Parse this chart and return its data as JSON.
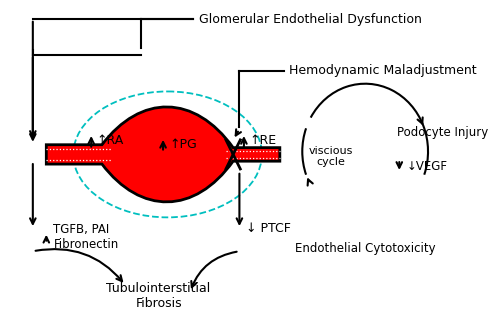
{
  "bg_color": "#ffffff",
  "glom_text": "Glomerular Endothelial Dysfunction",
  "hemo_text": "Hemodynamic Maladjustment",
  "ra_text": "↑RA",
  "re_text": "↑RE",
  "pg_text": "↑PG",
  "ptcf_text": "↓ PTCF",
  "tgfb_text": "TGFB, PAI\nFibronectin",
  "tubi_text": "Tubulointerstitial\nFibrosis",
  "viscous_text": "viscious\ncycle",
  "podocyte_text": "Podocyte Injury",
  "vegf_text": "↓VEGF",
  "endo_text": "Endothelial Cytotoxicity",
  "red_color": "#ff0000",
  "black_color": "#000000",
  "cyan_color": "#00bfbf",
  "dark_color": "#1a1a2e"
}
